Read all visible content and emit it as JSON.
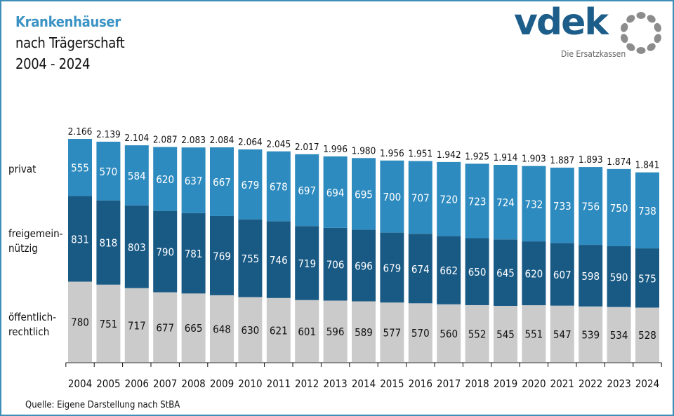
{
  "header": {
    "title": "Krankenhäuser",
    "subtitle": "nach Trägerschaft",
    "period": "2004 - 2024"
  },
  "logo": {
    "name": "vdek",
    "tagline": "Die Ersatzkassen"
  },
  "source": "Quelle: Eigene Darstellung nach StBA",
  "colors": {
    "title_accent": "#3a93c4",
    "privat": "#2e8bbf",
    "freigemeinnuetzig": "#195a85",
    "oeffentlich": "#cbcbcb",
    "border": "#3d8fb8"
  },
  "chart_data": {
    "type": "bar",
    "stacked": true,
    "title": "Krankenhäuser nach Trägerschaft 2004 - 2024",
    "xlabel": "",
    "ylabel": "",
    "grid": false,
    "legend": "left",
    "categories": [
      "2004",
      "2005",
      "2006",
      "2007",
      "2008",
      "2009",
      "2010",
      "2011",
      "2012",
      "2013",
      "2014",
      "2015",
      "2016",
      "2017",
      "2018",
      "2019",
      "2020",
      "2021",
      "2022",
      "2023",
      "2024"
    ],
    "series": [
      {
        "name": "öffentlich-rechtlich",
        "label_lines": [
          "öffentlich-",
          "rechtlich"
        ],
        "color": "#cbcbcb",
        "text_color": "#111111",
        "values": [
          780,
          751,
          717,
          677,
          665,
          648,
          630,
          621,
          601,
          596,
          589,
          577,
          570,
          560,
          552,
          545,
          551,
          547,
          539,
          534,
          528
        ]
      },
      {
        "name": "freigemeinnützig",
        "label_lines": [
          "freigemein-",
          "nützig"
        ],
        "color": "#195a85",
        "text_color": "#ffffff",
        "values": [
          831,
          818,
          803,
          790,
          781,
          769,
          755,
          746,
          719,
          706,
          696,
          679,
          674,
          662,
          650,
          645,
          620,
          607,
          598,
          590,
          575
        ]
      },
      {
        "name": "privat",
        "label_lines": [
          "privat"
        ],
        "color": "#2e8bbf",
        "text_color": "#ffffff",
        "values": [
          555,
          570,
          584,
          620,
          637,
          667,
          679,
          678,
          697,
          694,
          695,
          700,
          707,
          720,
          723,
          724,
          732,
          733,
          756,
          750,
          738
        ]
      }
    ],
    "totals": [
      "2.166",
      "2.139",
      "2.104",
      "2.087",
      "2.083",
      "2.084",
      "2.064",
      "2.045",
      "2.017",
      "1.996",
      "1.980",
      "1.956",
      "1.951",
      "1.942",
      "1.925",
      "1.914",
      "1.903",
      "1.887",
      "1.893",
      "1.874",
      "1.841"
    ],
    "ylim": [
      0,
      2200
    ]
  }
}
